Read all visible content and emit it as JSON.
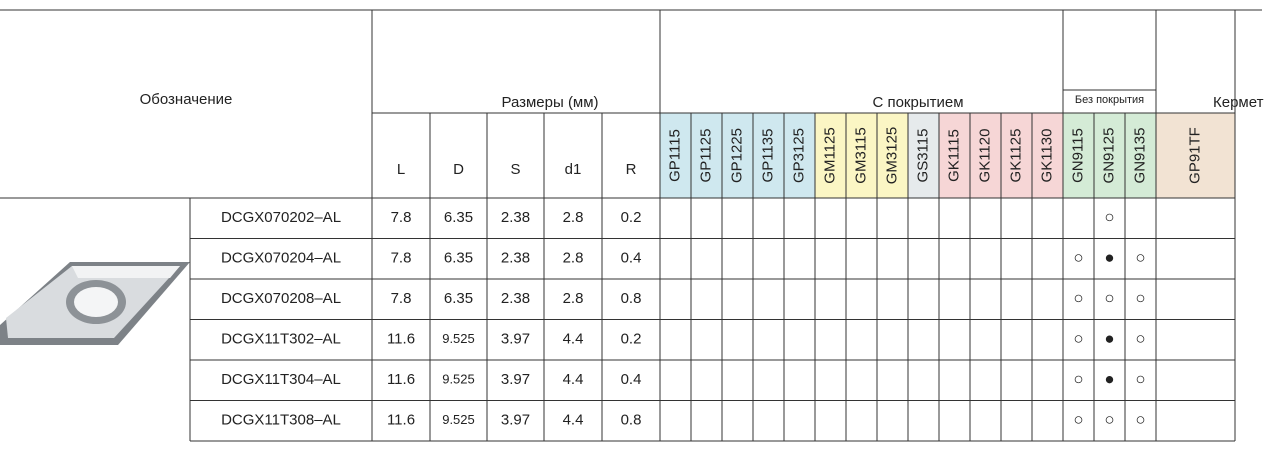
{
  "header": {
    "designation": "Обозначение",
    "dimensions": "Размеры (мм)",
    "coated": "С покрытием",
    "uncoated": "Без покрытия",
    "cermet": "Кермет"
  },
  "dimension_columns": [
    "L",
    "D",
    "S",
    "d1",
    "R"
  ],
  "coated_grades": [
    {
      "name": "GP1115",
      "color": "#cfe8ef"
    },
    {
      "name": "GP1125",
      "color": "#cfe8ef"
    },
    {
      "name": "GP1225",
      "color": "#cfe8ef"
    },
    {
      "name": "GP1135",
      "color": "#cfe8ef"
    },
    {
      "name": "GP3125",
      "color": "#cfe8ef"
    },
    {
      "name": "GM1125",
      "color": "#fbf6c4"
    },
    {
      "name": "GM3115",
      "color": "#fbf6c4"
    },
    {
      "name": "GM3125",
      "color": "#fbf6c4"
    },
    {
      "name": "GS3115",
      "color": "#e6eaec"
    },
    {
      "name": "GK1115",
      "color": "#f6d6d6"
    },
    {
      "name": "GK1120",
      "color": "#f6d6d6"
    },
    {
      "name": "GK1125",
      "color": "#f6d6d6"
    },
    {
      "name": "GK1130",
      "color": "#f6d6d6"
    }
  ],
  "uncoated_grades": [
    {
      "name": "GN9115",
      "color": "#d4ebd6"
    },
    {
      "name": "GN9125",
      "color": "#d4ebd6"
    },
    {
      "name": "GN9135",
      "color": "#d4ebd6"
    }
  ],
  "cermet_grades": [
    {
      "name": "GP91TF",
      "color": "#f2e3d3"
    }
  ],
  "rows": [
    {
      "designation": "DCGX070202–AL",
      "dimensions": [
        7.8,
        6.35,
        2.38,
        2.8,
        0.2
      ],
      "uncoated": [
        null,
        "○",
        null
      ]
    },
    {
      "designation": "DCGX070204–AL",
      "dimensions": [
        7.8,
        6.35,
        2.38,
        2.8,
        0.4
      ],
      "uncoated": [
        "○",
        "●",
        "○"
      ]
    },
    {
      "designation": "DCGX070208–AL",
      "dimensions": [
        7.8,
        6.35,
        2.38,
        2.8,
        0.8
      ],
      "uncoated": [
        "○",
        "○",
        "○"
      ]
    },
    {
      "designation": "DCGX11T302–AL",
      "dimensions": [
        11.6,
        9.525,
        3.97,
        4.4,
        0.2
      ],
      "uncoated": [
        "○",
        "●",
        "○"
      ]
    },
    {
      "designation": "DCGX11T304–AL",
      "dimensions": [
        11.6,
        9.525,
        3.97,
        4.4,
        0.4
      ],
      "uncoated": [
        "○",
        "●",
        "○"
      ]
    },
    {
      "designation": "DCGX11T308–AL",
      "dimensions": [
        11.6,
        9.525,
        3.97,
        4.4,
        0.8
      ],
      "uncoated": [
        "○",
        "○",
        "○"
      ]
    }
  ]
}
